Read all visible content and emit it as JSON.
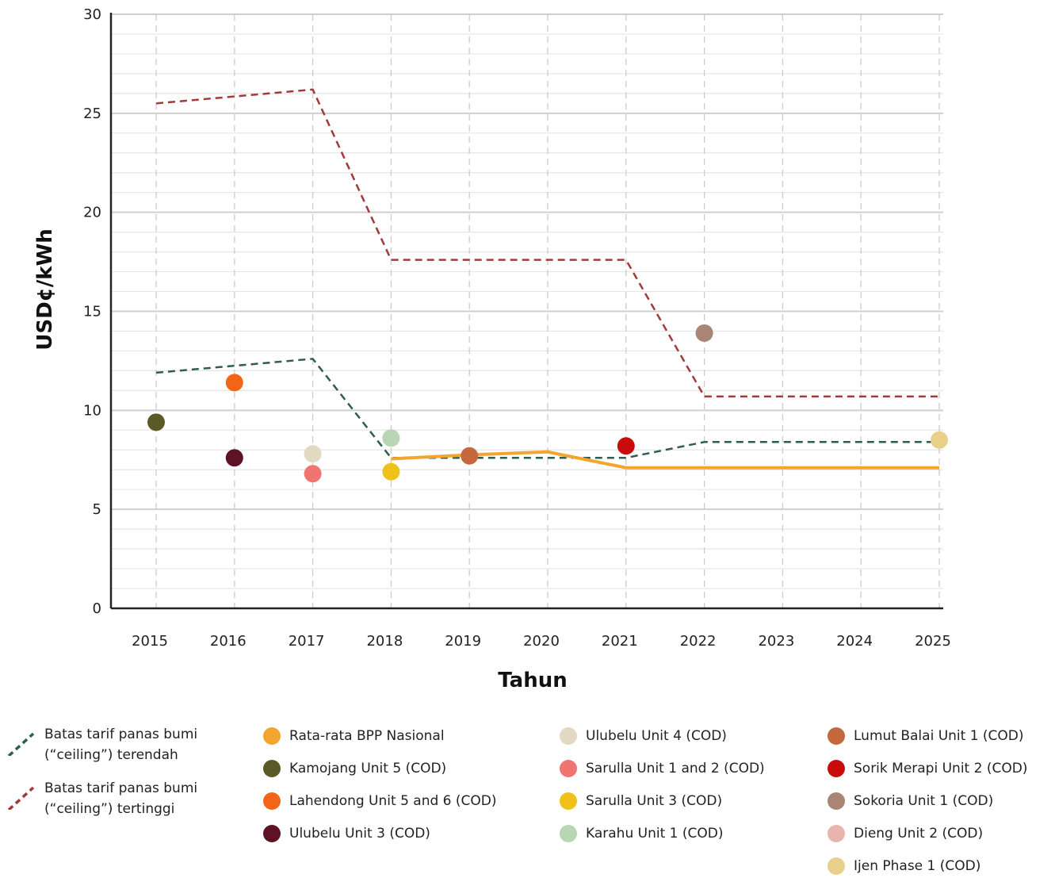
{
  "chart_data": {
    "type": "line",
    "xlabel": "Tahun",
    "ylabel": "USD¢/kWh",
    "x_ticks": [
      "2015",
      "2016",
      "2017",
      "2018",
      "2019",
      "2020",
      "2021",
      "2022",
      "2023",
      "2024",
      "2025"
    ],
    "y_ticks": [
      "0",
      "5",
      "10",
      "15",
      "20",
      "25",
      "30"
    ],
    "xlim": [
      2015,
      2025
    ],
    "ylim": [
      0,
      30
    ],
    "grid": true,
    "legend_position": "bottom",
    "lines": [
      {
        "name": "Batas tarif panas bumi (“ceiling”) terendah",
        "color": "#2e5e4e",
        "style": "dashed",
        "points": [
          [
            2015,
            11.9
          ],
          [
            2017,
            12.6
          ],
          [
            2018,
            7.6
          ],
          [
            2021,
            7.6
          ],
          [
            2022,
            8.4
          ],
          [
            2025,
            8.4
          ]
        ]
      },
      {
        "name": "Batas tarif panas bumi (“ceiling”) tertinggi",
        "color": "#a33a3a",
        "style": "dashed",
        "points": [
          [
            2015,
            25.5
          ],
          [
            2017,
            26.2
          ],
          [
            2018,
            17.6
          ],
          [
            2021,
            17.6
          ],
          [
            2022,
            10.7
          ],
          [
            2025,
            10.7
          ]
        ]
      },
      {
        "name": "Rata-rata BPP Nasional",
        "color": "#f3a530",
        "style": "solid",
        "points": [
          [
            2018,
            7.55
          ],
          [
            2019,
            7.75
          ],
          [
            2020,
            7.9
          ],
          [
            2021,
            7.1
          ],
          [
            2025,
            7.1
          ]
        ]
      }
    ],
    "points": [
      {
        "name": "Kamojang Unit 5 (COD)",
        "color": "#5a5a28",
        "x": 2015,
        "y": 9.4
      },
      {
        "name": "Lahendong Unit 5 and 6 (COD)",
        "color": "#f26516",
        "x": 2016,
        "y": 11.4
      },
      {
        "name": "Ulubelu Unit 3 (COD)",
        "color": "#5e1225",
        "x": 2016,
        "y": 7.6
      },
      {
        "name": "Ulubelu Unit 4 (COD)",
        "color": "#e2d9c3",
        "x": 2017,
        "y": 7.8
      },
      {
        "name": "Sarulla Unit 1 and 2 (COD)",
        "color": "#f07572",
        "x": 2017,
        "y": 6.8
      },
      {
        "name": "Sarulla Unit 3 (COD)",
        "color": "#f0c219",
        "x": 2018,
        "y": 6.9
      },
      {
        "name": "Karahu Unit 1 (COD)",
        "color": "#b8d6b4",
        "x": 2018,
        "y": 8.6
      },
      {
        "name": "Lumut Balai Unit 1 (COD)",
        "color": "#c5683e",
        "x": 2019,
        "y": 7.7
      },
      {
        "name": "Sorik Merapi Unit 2 (COD)",
        "color": "#c80c0c",
        "x": 2021,
        "y": 8.2
      },
      {
        "name": "Sokoria Unit 1 (COD)",
        "color": "#a88574",
        "x": 2022,
        "y": 13.9
      },
      {
        "name": "Dieng Unit 2 (COD)",
        "color": "#e8b4ae",
        "x": null,
        "y": null
      },
      {
        "name": "Ijen Phase 1 (COD)",
        "color": "#e9d08a",
        "x": 2025,
        "y": 8.5
      }
    ]
  },
  "legend": {
    "line_items": [
      {
        "label": "Batas tarif panas bumi\n(“ceiling”) terendah",
        "color": "#2e5e4e"
      },
      {
        "label": "Batas tarif panas bumi\n(“ceiling”) tertinggi",
        "color": "#a33a3a"
      }
    ],
    "dot_items": [
      {
        "label": "Rata-rata BPP Nasional",
        "color": "#f3a530"
      },
      {
        "label": "Kamojang Unit 5 (COD)",
        "color": "#5a5a28"
      },
      {
        "label": "Lahendong Unit 5 and 6 (COD)",
        "color": "#f26516"
      },
      {
        "label": "Ulubelu Unit 3 (COD)",
        "color": "#5e1225"
      },
      {
        "label": "Ulubelu Unit 4 (COD)",
        "color": "#e2d9c3"
      },
      {
        "label": "Sarulla Unit 1 and 2 (COD)",
        "color": "#f07572"
      },
      {
        "label": "Sarulla Unit 3 (COD)",
        "color": "#f0c219"
      },
      {
        "label": "Karahu Unit 1 (COD)",
        "color": "#b8d6b4"
      },
      {
        "label": "Lumut Balai Unit 1 (COD)",
        "color": "#c5683e"
      },
      {
        "label": "Sorik Merapi Unit 2 (COD)",
        "color": "#c80c0c"
      },
      {
        "label": "Sokoria Unit 1 (COD)",
        "color": "#a88574"
      },
      {
        "label": "Dieng Unit 2 (COD)",
        "color": "#e8b4ae"
      },
      {
        "label": "Ijen Phase 1 (COD)",
        "color": "#e9d08a"
      }
    ]
  }
}
